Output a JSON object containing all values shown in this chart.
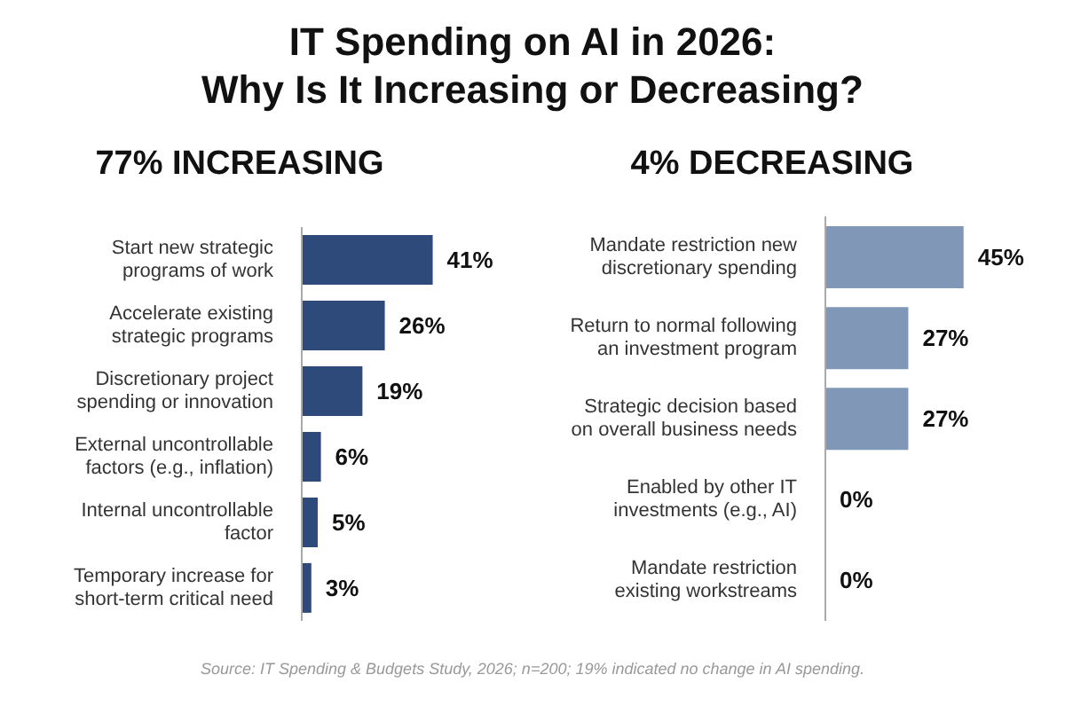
{
  "chart_data": [
    {
      "type": "bar",
      "orientation": "horizontal",
      "title": "IT Spending on AI in 2026:\nWhy Is It Increasing or Decreasing?",
      "subtitle": "77% INCREASING",
      "categories": [
        "Start new strategic programs of work",
        "Accelerate existing strategic programs",
        "Discretionary project spending or innovation",
        "External uncontrollable factors (e.g., inflation)",
        "Internal uncontrollable factor",
        "Temporary increase for short-term critical need"
      ],
      "values": [
        41,
        26,
        19,
        6,
        5,
        3
      ],
      "color": "#2d4a7a",
      "value_labels": [
        "41%",
        "26%",
        "19%",
        "6%",
        "5%",
        "3%"
      ]
    },
    {
      "type": "bar",
      "orientation": "horizontal",
      "subtitle": "4% DECREASING",
      "categories": [
        "Mandate restriction new discretionary spending",
        "Return to normal following an investment program",
        "Strategic decision based on overall business needs",
        "Enabled by other IT investments (e.g., AI)",
        "Mandate restriction existing workstreams"
      ],
      "values": [
        45,
        27,
        27,
        0,
        0
      ],
      "color": "#8097b8",
      "value_labels": [
        "45%",
        "27%",
        "27%",
        "0%",
        "0%"
      ],
      "annotations": [
        "Source: IT Spending & Budgets Study, 2026; n=200; 19% indicated no change in AI spending."
      ]
    }
  ]
}
